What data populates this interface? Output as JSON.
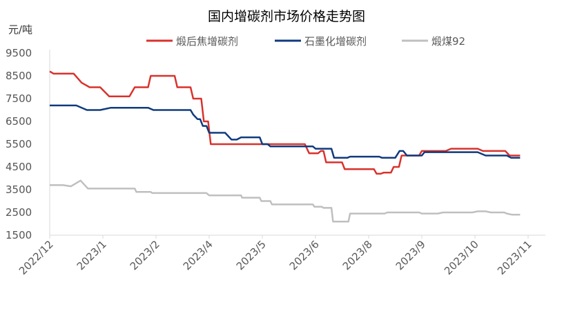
{
  "chart_data": {
    "type": "line",
    "title": "国内增碳剂市场价格走势图",
    "unit_label": "元/吨",
    "ylim": [
      1500,
      9500
    ],
    "yticks": [
      1500,
      2500,
      3500,
      4500,
      5500,
      6500,
      7500,
      8500,
      9500
    ],
    "xlim": [
      0,
      11.4
    ],
    "x_ticks": [
      {
        "pos": 0,
        "label": "2022/12"
      },
      {
        "pos": 1,
        "label": "2023/1"
      },
      {
        "pos": 2,
        "label": "2023/2"
      },
      {
        "pos": 3,
        "label": "2023/4"
      },
      {
        "pos": 4,
        "label": "2023/5"
      },
      {
        "pos": 5,
        "label": "2023/6"
      },
      {
        "pos": 6,
        "label": "2023/8"
      },
      {
        "pos": 7,
        "label": "2023/9"
      },
      {
        "pos": 8,
        "label": "2023/10"
      },
      {
        "pos": 9,
        "label": "2023/11"
      }
    ],
    "legend_position": "top-center",
    "grid": false,
    "series": [
      {
        "name": "煅后焦增碳剂",
        "color": "#d9312b",
        "points": [
          [
            0.0,
            8700
          ],
          [
            0.07,
            8600
          ],
          [
            0.45,
            8600
          ],
          [
            0.6,
            8200
          ],
          [
            0.75,
            8000
          ],
          [
            0.95,
            8000
          ],
          [
            1.12,
            7600
          ],
          [
            1.5,
            7600
          ],
          [
            1.6,
            8000
          ],
          [
            1.85,
            8000
          ],
          [
            1.9,
            8500
          ],
          [
            2.35,
            8500
          ],
          [
            2.4,
            8000
          ],
          [
            2.65,
            8000
          ],
          [
            2.7,
            7500
          ],
          [
            2.85,
            7500
          ],
          [
            2.9,
            6500
          ],
          [
            2.98,
            6500
          ],
          [
            3.03,
            5500
          ],
          [
            4.8,
            5500
          ],
          [
            4.88,
            5100
          ],
          [
            5.05,
            5100
          ],
          [
            5.1,
            5200
          ],
          [
            5.15,
            5200
          ],
          [
            5.2,
            4700
          ],
          [
            5.5,
            4700
          ],
          [
            5.55,
            4400
          ],
          [
            6.1,
            4400
          ],
          [
            6.15,
            4200
          ],
          [
            6.23,
            4200
          ],
          [
            6.28,
            4250
          ],
          [
            6.42,
            4250
          ],
          [
            6.47,
            4500
          ],
          [
            6.57,
            4500
          ],
          [
            6.62,
            5000
          ],
          [
            6.95,
            5000
          ],
          [
            7.0,
            5200
          ],
          [
            7.45,
            5200
          ],
          [
            7.55,
            5300
          ],
          [
            8.05,
            5300
          ],
          [
            8.15,
            5200
          ],
          [
            8.57,
            5200
          ],
          [
            8.65,
            5000
          ],
          [
            8.85,
            5000
          ]
        ]
      },
      {
        "name": "石墨化增碳剂",
        "color": "#0f3a7d",
        "points": [
          [
            0.0,
            7200
          ],
          [
            0.5,
            7200
          ],
          [
            0.7,
            7000
          ],
          [
            0.95,
            7000
          ],
          [
            1.15,
            7100
          ],
          [
            1.85,
            7100
          ],
          [
            1.95,
            7000
          ],
          [
            2.65,
            7000
          ],
          [
            2.7,
            6800
          ],
          [
            2.78,
            6600
          ],
          [
            2.83,
            6600
          ],
          [
            2.88,
            6300
          ],
          [
            2.95,
            6300
          ],
          [
            3.0,
            6000
          ],
          [
            3.3,
            6000
          ],
          [
            3.42,
            5700
          ],
          [
            3.52,
            5700
          ],
          [
            3.6,
            5800
          ],
          [
            3.95,
            5800
          ],
          [
            4.0,
            5500
          ],
          [
            4.1,
            5500
          ],
          [
            4.15,
            5400
          ],
          [
            4.95,
            5400
          ],
          [
            5.0,
            5300
          ],
          [
            5.3,
            5300
          ],
          [
            5.35,
            4900
          ],
          [
            5.6,
            4900
          ],
          [
            5.65,
            4950
          ],
          [
            6.2,
            4950
          ],
          [
            6.25,
            4900
          ],
          [
            6.5,
            4900
          ],
          [
            6.58,
            5200
          ],
          [
            6.65,
            5200
          ],
          [
            6.72,
            5000
          ],
          [
            7.0,
            5000
          ],
          [
            7.05,
            5150
          ],
          [
            8.05,
            5150
          ],
          [
            8.2,
            5000
          ],
          [
            8.6,
            5000
          ],
          [
            8.68,
            4900
          ],
          [
            8.85,
            4900
          ]
        ]
      },
      {
        "name": "煅煤92",
        "color": "#bfbfbf",
        "points": [
          [
            0.0,
            3700
          ],
          [
            0.25,
            3700
          ],
          [
            0.4,
            3650
          ],
          [
            0.58,
            3900
          ],
          [
            0.72,
            3550
          ],
          [
            1.6,
            3550
          ],
          [
            1.63,
            3400
          ],
          [
            1.9,
            3400
          ],
          [
            1.93,
            3350
          ],
          [
            2.95,
            3350
          ],
          [
            3.0,
            3250
          ],
          [
            3.6,
            3250
          ],
          [
            3.62,
            3150
          ],
          [
            3.95,
            3150
          ],
          [
            3.98,
            3000
          ],
          [
            4.15,
            3000
          ],
          [
            4.18,
            2850
          ],
          [
            4.95,
            2850
          ],
          [
            4.98,
            2750
          ],
          [
            5.12,
            2750
          ],
          [
            5.15,
            2700
          ],
          [
            5.3,
            2700
          ],
          [
            5.33,
            2100
          ],
          [
            5.62,
            2100
          ],
          [
            5.65,
            2450
          ],
          [
            6.3,
            2450
          ],
          [
            6.35,
            2500
          ],
          [
            6.95,
            2500
          ],
          [
            7.0,
            2450
          ],
          [
            7.3,
            2450
          ],
          [
            7.4,
            2500
          ],
          [
            7.95,
            2500
          ],
          [
            8.05,
            2550
          ],
          [
            8.2,
            2550
          ],
          [
            8.3,
            2500
          ],
          [
            8.55,
            2500
          ],
          [
            8.6,
            2450
          ],
          [
            8.7,
            2400
          ],
          [
            8.85,
            2400
          ]
        ]
      }
    ]
  }
}
